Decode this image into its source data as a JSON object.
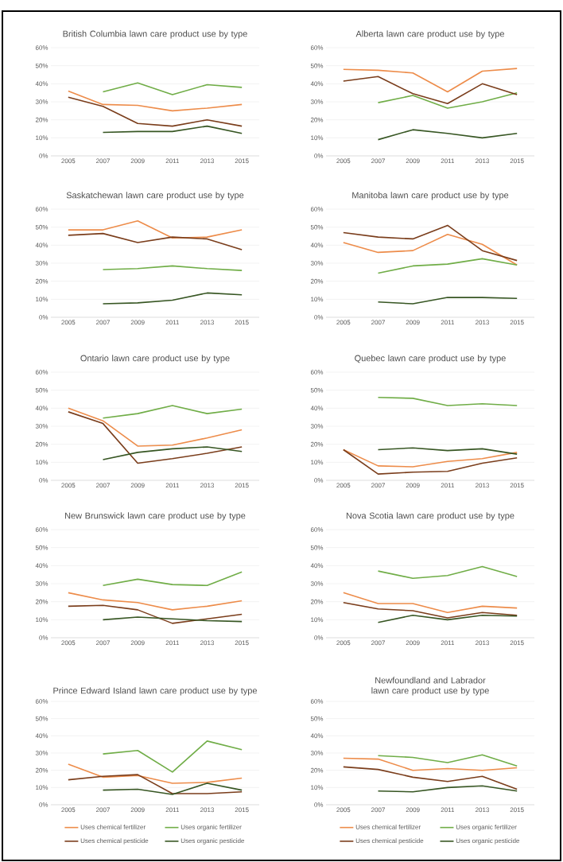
{
  "chart_data": [
    {
      "type": "line",
      "title": "British Columbia lawn care product use by type",
      "categories": [
        "2005",
        "2007",
        "2009",
        "2011",
        "2013",
        "2015"
      ],
      "ylim": [
        0,
        60
      ],
      "yticks": [
        {
          "value": 0,
          "label": "0%"
        },
        {
          "value": 10,
          "label": "10%"
        },
        {
          "value": 20,
          "label": "20%"
        },
        {
          "value": 30,
          "label": "30%"
        },
        {
          "value": 40,
          "label": "40%"
        },
        {
          "value": 50,
          "label": "50%"
        },
        {
          "value": 60,
          "label": "60%"
        }
      ],
      "grid": "y",
      "legend": false,
      "series": [
        {
          "color": "#ed8c4a",
          "values": [
            36,
            28.5,
            28,
            25,
            26.5,
            28.5
          ]
        },
        {
          "color": "#70ad47",
          "values": [
            null,
            35.5,
            40.5,
            34,
            39.5,
            38
          ]
        },
        {
          "color": "#7a3d1b",
          "values": [
            32.5,
            27.5,
            18,
            16.5,
            20,
            16.5
          ]
        },
        {
          "color": "#375623",
          "values": [
            null,
            13,
            13.5,
            13.5,
            16.5,
            12.5
          ]
        }
      ]
    },
    {
      "type": "line",
      "title": "Alberta lawn care product use by type",
      "categories": [
        "2005",
        "2007",
        "2009",
        "2011",
        "2013",
        "2015"
      ],
      "ylim": [
        0,
        60
      ],
      "yticks": [
        {
          "value": 0,
          "label": "0%"
        },
        {
          "value": 10,
          "label": "10%"
        },
        {
          "value": 20,
          "label": "20%"
        },
        {
          "value": 30,
          "label": "30%"
        },
        {
          "value": 40,
          "label": "40%"
        },
        {
          "value": 50,
          "label": "50%"
        },
        {
          "value": 60,
          "label": "60%"
        }
      ],
      "grid": "y",
      "legend": false,
      "series": [
        {
          "color": "#ed8c4a",
          "values": [
            48,
            47.5,
            46,
            35.5,
            47,
            48.5
          ]
        },
        {
          "color": "#70ad47",
          "values": [
            null,
            29.5,
            33.5,
            26.5,
            30,
            35
          ]
        },
        {
          "color": "#7a3d1b",
          "values": [
            41.5,
            44,
            34.5,
            29,
            40,
            34
          ]
        },
        {
          "color": "#375623",
          "values": [
            null,
            9,
            14.5,
            12.5,
            10,
            12.5
          ]
        }
      ]
    },
    {
      "type": "line",
      "title": "Saskatchewan lawn care product use by type",
      "categories": [
        "2005",
        "2007",
        "2009",
        "2011",
        "2013",
        "2015"
      ],
      "ylim": [
        0,
        60
      ],
      "yticks": [
        {
          "value": 0,
          "label": "0%"
        },
        {
          "value": 10,
          "label": "10%"
        },
        {
          "value": 20,
          "label": "20%"
        },
        {
          "value": 30,
          "label": "30%"
        },
        {
          "value": 40,
          "label": "40%"
        },
        {
          "value": 50,
          "label": "50%"
        },
        {
          "value": 60,
          "label": "60%"
        }
      ],
      "grid": "y",
      "legend": false,
      "series": [
        {
          "color": "#ed8c4a",
          "values": [
            48.5,
            48.5,
            53.5,
            44,
            44.5,
            48.5
          ]
        },
        {
          "color": "#70ad47",
          "values": [
            null,
            26.5,
            27,
            28.5,
            27,
            26
          ]
        },
        {
          "color": "#7a3d1b",
          "values": [
            45.5,
            46.5,
            41.5,
            44.5,
            43.5,
            37.5
          ]
        },
        {
          "color": "#375623",
          "values": [
            null,
            7.5,
            8,
            9.5,
            13.5,
            12.5
          ]
        }
      ]
    },
    {
      "type": "line",
      "title": "Manitoba lawn care product use by type",
      "categories": [
        "2005",
        "2007",
        "2009",
        "2011",
        "2013",
        "2015"
      ],
      "ylim": [
        0,
        60
      ],
      "yticks": [
        {
          "value": 0,
          "label": "0%"
        },
        {
          "value": 10,
          "label": "10%"
        },
        {
          "value": 20,
          "label": "20%"
        },
        {
          "value": 30,
          "label": "30%"
        },
        {
          "value": 40,
          "label": "40%"
        },
        {
          "value": 50,
          "label": "50%"
        },
        {
          "value": 60,
          "label": "60%"
        }
      ],
      "grid": "y",
      "legend": false,
      "series": [
        {
          "color": "#ed8c4a",
          "values": [
            41.5,
            36,
            37,
            46,
            40.5,
            29
          ]
        },
        {
          "color": "#70ad47",
          "values": [
            null,
            24.5,
            28.5,
            29.5,
            32.5,
            29
          ]
        },
        {
          "color": "#7a3d1b",
          "values": [
            47,
            44.5,
            43.5,
            51,
            37,
            31.5
          ]
        },
        {
          "color": "#375623",
          "values": [
            null,
            8.5,
            7.5,
            11,
            11,
            10.5
          ]
        }
      ]
    },
    {
      "type": "line",
      "title": "Ontario lawn care product use by type",
      "categories": [
        "2005",
        "2007",
        "2009",
        "2011",
        "2013",
        "2015"
      ],
      "ylim": [
        0,
        60
      ],
      "yticks": [
        {
          "value": 0,
          "label": "0%"
        },
        {
          "value": 10,
          "label": "10%"
        },
        {
          "value": 20,
          "label": "20%"
        },
        {
          "value": 30,
          "label": "30%"
        },
        {
          "value": 40,
          "label": "40%"
        },
        {
          "value": 50,
          "label": "50%"
        },
        {
          "value": 60,
          "label": "60%"
        }
      ],
      "grid": "y",
      "legend": false,
      "series": [
        {
          "color": "#ed8c4a",
          "values": [
            40,
            33,
            19,
            19.5,
            23.5,
            28
          ]
        },
        {
          "color": "#70ad47",
          "values": [
            null,
            34.5,
            37,
            41.5,
            37,
            39.5
          ]
        },
        {
          "color": "#7a3d1b",
          "values": [
            38,
            31.5,
            9.5,
            12,
            15,
            18.5
          ]
        },
        {
          "color": "#375623",
          "values": [
            null,
            11.5,
            15.5,
            17.5,
            18.5,
            16
          ]
        }
      ]
    },
    {
      "type": "line",
      "title": "Quebec lawn care product use by type",
      "categories": [
        "2005",
        "2007",
        "2009",
        "2011",
        "2013",
        "2015"
      ],
      "ylim": [
        0,
        60
      ],
      "yticks": [
        {
          "value": 0,
          "label": "0%"
        },
        {
          "value": 10,
          "label": "10%"
        },
        {
          "value": 20,
          "label": "20%"
        },
        {
          "value": 30,
          "label": "30%"
        },
        {
          "value": 40,
          "label": "40%"
        },
        {
          "value": 50,
          "label": "50%"
        },
        {
          "value": 60,
          "label": "60%"
        }
      ],
      "grid": "y",
      "legend": false,
      "series": [
        {
          "color": "#ed8c4a",
          "values": [
            17,
            8,
            7.5,
            10.5,
            12,
            15.5
          ]
        },
        {
          "color": "#70ad47",
          "values": [
            null,
            46,
            45.5,
            41.5,
            42.5,
            41.5
          ]
        },
        {
          "color": "#7a3d1b",
          "values": [
            17,
            3.5,
            4.5,
            5,
            9.5,
            12.5
          ]
        },
        {
          "color": "#375623",
          "values": [
            null,
            17,
            18,
            16.5,
            17.5,
            14.5
          ]
        }
      ]
    },
    {
      "type": "line",
      "title": "New Brunswick lawn care product use by type",
      "categories": [
        "2005",
        "2007",
        "2009",
        "2011",
        "2013",
        "2015"
      ],
      "ylim": [
        0,
        60
      ],
      "yticks": [
        {
          "value": 0,
          "label": "0%"
        },
        {
          "value": 10,
          "label": "10%"
        },
        {
          "value": 20,
          "label": "20%"
        },
        {
          "value": 30,
          "label": "30%"
        },
        {
          "value": 40,
          "label": "40%"
        },
        {
          "value": 50,
          "label": "50%"
        },
        {
          "value": 60,
          "label": "60%"
        }
      ],
      "grid": "y",
      "legend": false,
      "series": [
        {
          "color": "#ed8c4a",
          "values": [
            25,
            21,
            19.5,
            15.5,
            17.5,
            20.5
          ]
        },
        {
          "color": "#70ad47",
          "values": [
            null,
            29,
            32.5,
            29.5,
            29,
            36.5
          ]
        },
        {
          "color": "#7a3d1b",
          "values": [
            17.5,
            18,
            15.5,
            8,
            10.5,
            13
          ]
        },
        {
          "color": "#375623",
          "values": [
            null,
            10,
            11.5,
            10.5,
            9.5,
            9
          ]
        }
      ]
    },
    {
      "type": "line",
      "title": "Nova Scotia lawn care product use by type",
      "categories": [
        "2005",
        "2007",
        "2009",
        "2011",
        "2013",
        "2015"
      ],
      "ylim": [
        0,
        60
      ],
      "yticks": [
        {
          "value": 0,
          "label": "0%"
        },
        {
          "value": 10,
          "label": "10%"
        },
        {
          "value": 20,
          "label": "20%"
        },
        {
          "value": 30,
          "label": "30%"
        },
        {
          "value": 40,
          "label": "40%"
        },
        {
          "value": 50,
          "label": "50%"
        },
        {
          "value": 60,
          "label": "60%"
        }
      ],
      "grid": "y",
      "legend": false,
      "series": [
        {
          "color": "#ed8c4a",
          "values": [
            25,
            19,
            19,
            14,
            17.5,
            16.5
          ]
        },
        {
          "color": "#70ad47",
          "values": [
            null,
            37,
            33,
            34.5,
            39.5,
            34
          ]
        },
        {
          "color": "#7a3d1b",
          "values": [
            19.5,
            16,
            15,
            11,
            14,
            12.5
          ]
        },
        {
          "color": "#375623",
          "values": [
            null,
            8.5,
            12.5,
            10,
            12.5,
            12
          ]
        }
      ]
    },
    {
      "type": "line",
      "title": "Prince Edward Island lawn care product use by type",
      "categories": [
        "2005",
        "2007",
        "2009",
        "2011",
        "2013",
        "2015"
      ],
      "ylim": [
        0,
        60
      ],
      "yticks": [
        {
          "value": 0,
          "label": "0%"
        },
        {
          "value": 10,
          "label": "10%"
        },
        {
          "value": 20,
          "label": "20%"
        },
        {
          "value": 30,
          "label": "30%"
        },
        {
          "value": 40,
          "label": "40%"
        },
        {
          "value": 50,
          "label": "50%"
        },
        {
          "value": 60,
          "label": "60%"
        }
      ],
      "grid": "y",
      "legend": "bottom",
      "series": [
        {
          "name": "Uses chemical fertilizer",
          "color": "#ed8c4a",
          "values": [
            23.5,
            16,
            17,
            12.5,
            13,
            15.5
          ]
        },
        {
          "name": "Uses organic fertilizer",
          "color": "#70ad47",
          "values": [
            null,
            29.5,
            31.5,
            19,
            37,
            32
          ]
        },
        {
          "name": "Uses chemical pesticide",
          "color": "#7a3d1b",
          "values": [
            14.5,
            16.5,
            17.5,
            6.5,
            6.5,
            7.5
          ]
        },
        {
          "name": "Uses organic pesticide",
          "color": "#375623",
          "values": [
            null,
            8.5,
            9,
            6,
            12.5,
            8.5
          ]
        }
      ]
    },
    {
      "type": "line",
      "title": "Newfoundland and Labrador lawn care product use by type",
      "categories": [
        "2005",
        "2007",
        "2009",
        "2011",
        "2013",
        "2015"
      ],
      "ylim": [
        0,
        60
      ],
      "yticks": [
        {
          "value": 0,
          "label": "0%"
        },
        {
          "value": 10,
          "label": "10%"
        },
        {
          "value": 20,
          "label": "20%"
        },
        {
          "value": 30,
          "label": "30%"
        },
        {
          "value": 40,
          "label": "40%"
        },
        {
          "value": 50,
          "label": "50%"
        },
        {
          "value": 60,
          "label": "60%"
        }
      ],
      "grid": "y",
      "legend": "bottom",
      "series": [
        {
          "name": "Uses chemical fertilizer",
          "color": "#ed8c4a",
          "values": [
            27,
            26.5,
            20,
            21,
            20,
            21.5
          ]
        },
        {
          "name": "Uses organic fertilizer",
          "color": "#70ad47",
          "values": [
            null,
            28.5,
            27.5,
            24.5,
            29,
            22.5
          ]
        },
        {
          "name": "Uses chemical pesticide",
          "color": "#7a3d1b",
          "values": [
            22,
            20.5,
            16,
            13.5,
            16.5,
            9
          ]
        },
        {
          "name": "Uses organic pesticide",
          "color": "#375623",
          "values": [
            null,
            8,
            7.5,
            10,
            11,
            8
          ]
        }
      ]
    }
  ]
}
